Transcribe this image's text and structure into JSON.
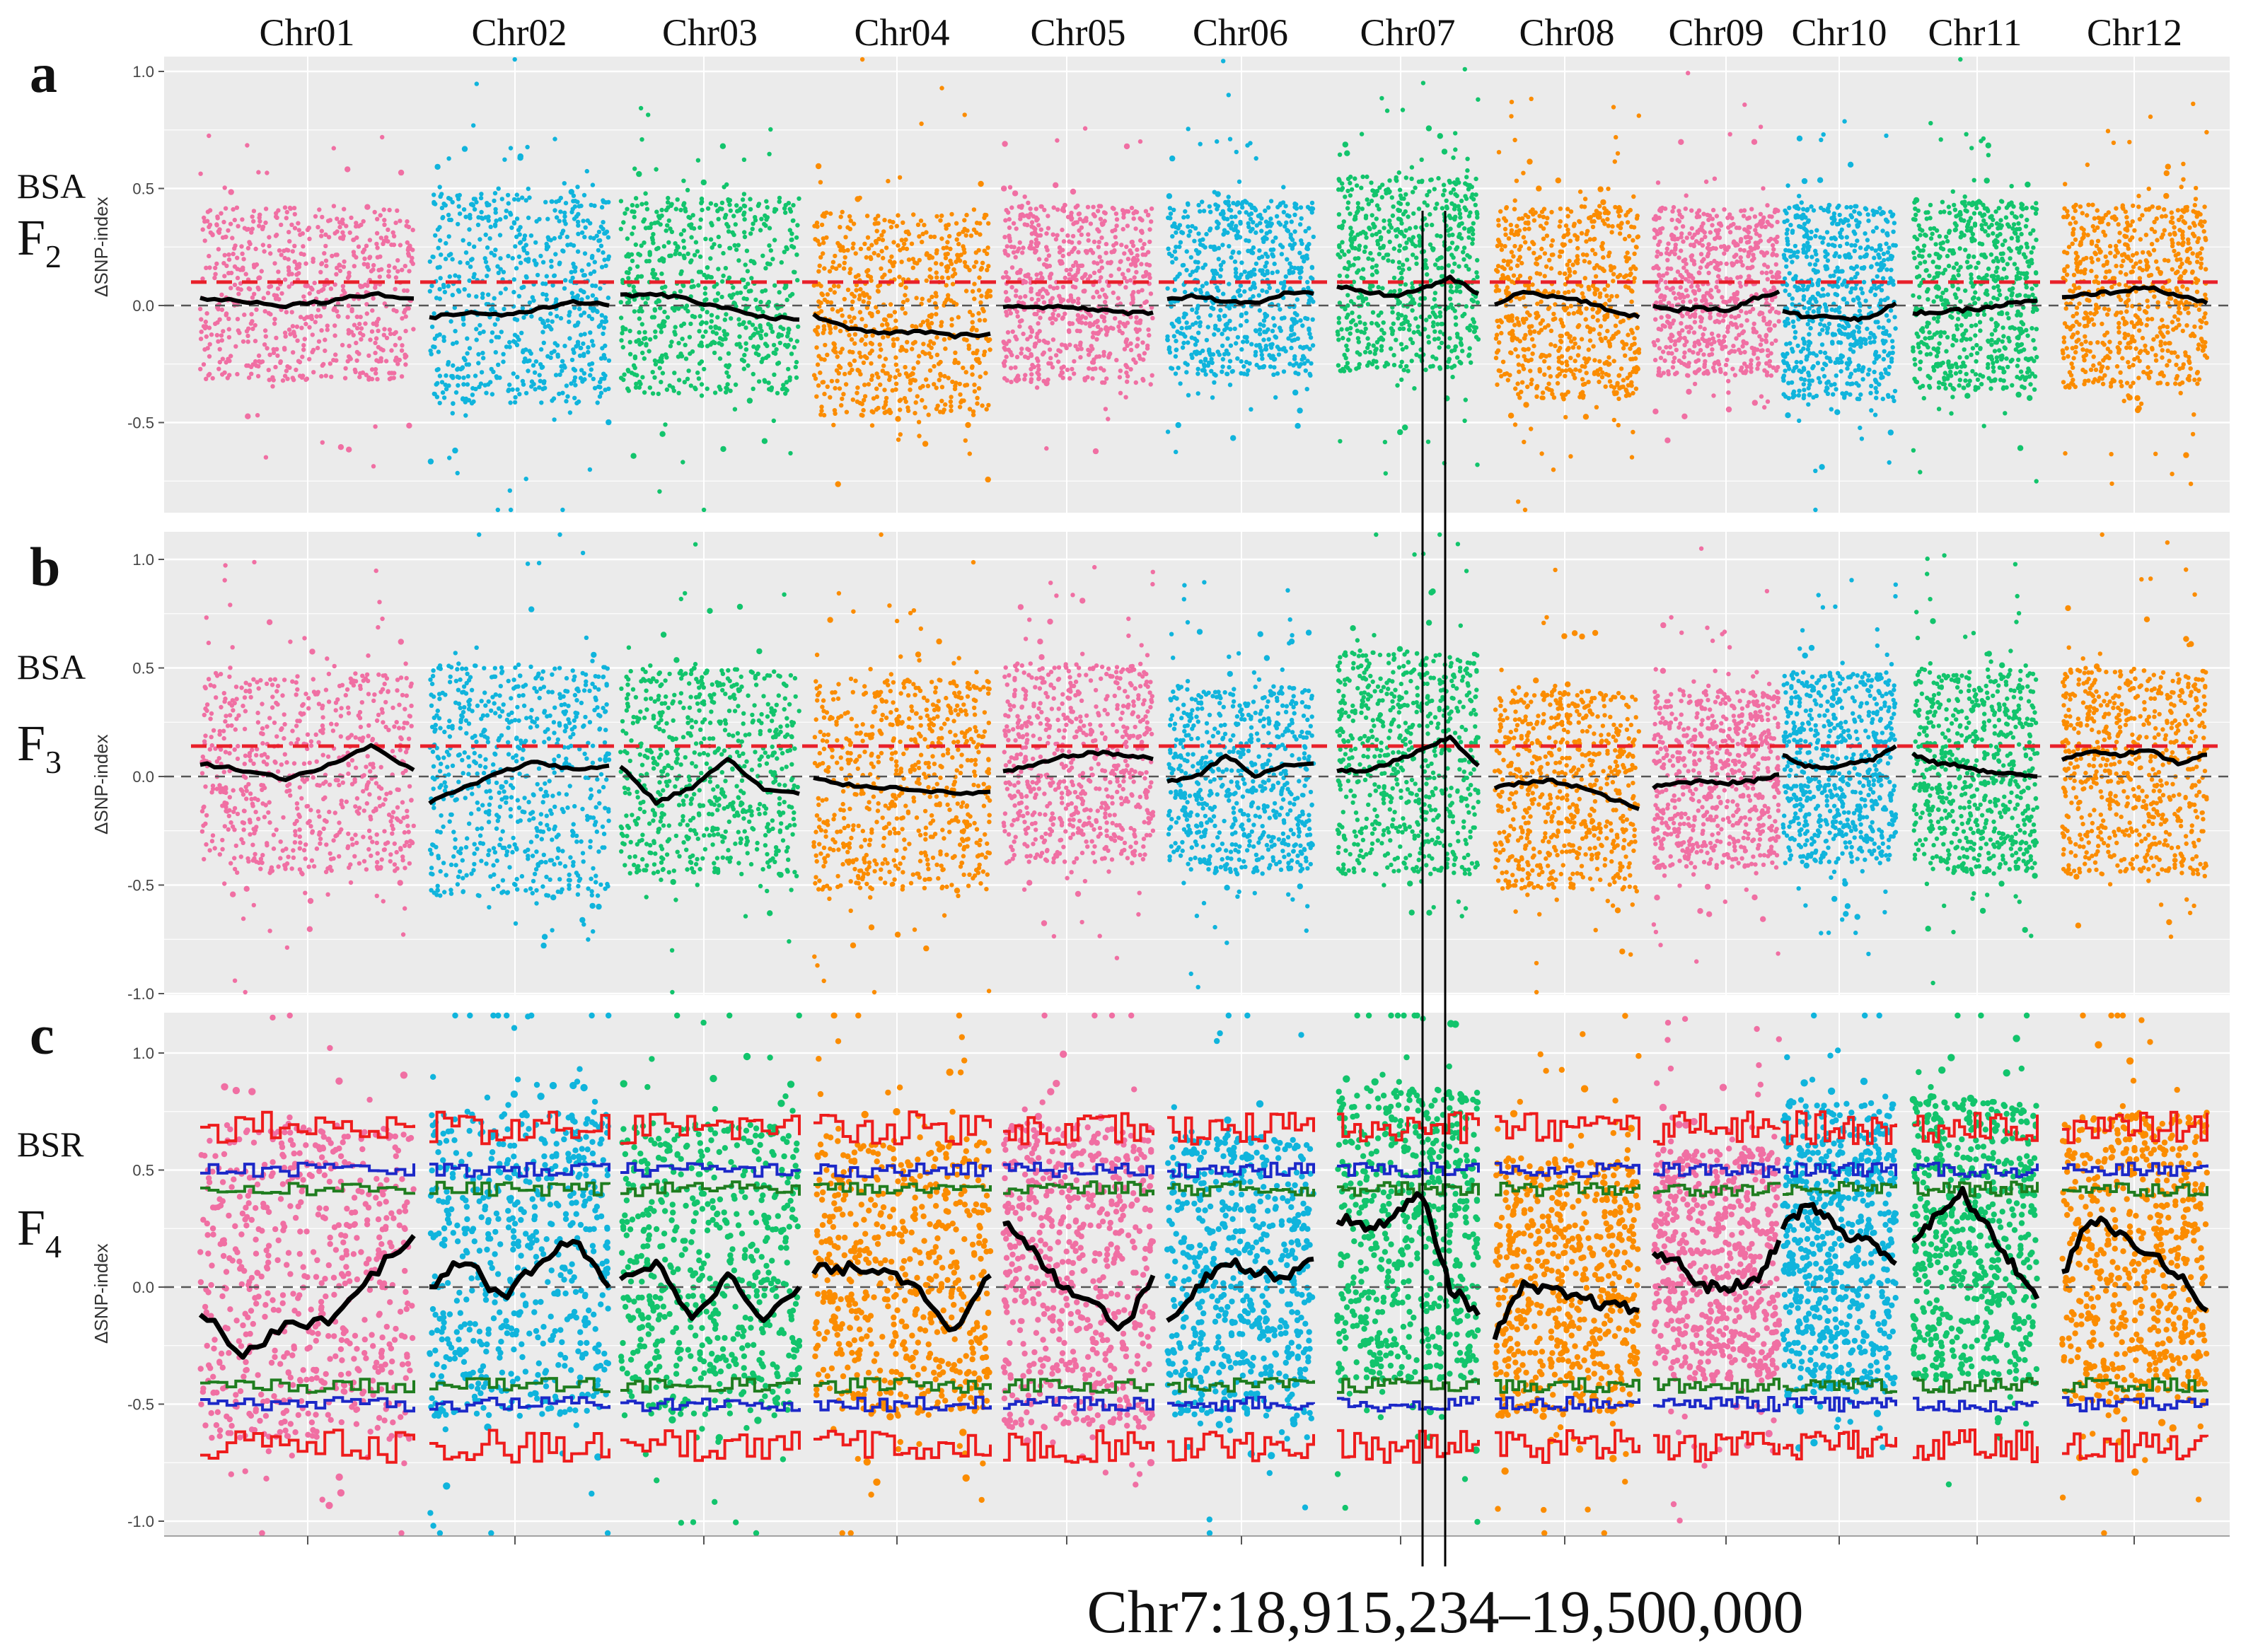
{
  "chart_data": {
    "type": "scatter",
    "chromosomes": [
      "Chr01",
      "Chr02",
      "Chr03",
      "Chr04",
      "Chr05",
      "Chr06",
      "Chr07",
      "Chr08",
      "Chr09",
      "Chr10",
      "Chr11",
      "Chr12"
    ],
    "chromosome_colors": [
      "#f06fa3",
      "#10b4dc",
      "#12c46c",
      "#fb8c00",
      "#f06fa3",
      "#10b4dc",
      "#12c46c",
      "#fb8c00",
      "#f06fa3",
      "#10b4dc",
      "#12c46c",
      "#fb8c00"
    ],
    "ylabel": "ΔSNP-index",
    "annotation": "Chr7:18,915,234–19,500,000",
    "panels": [
      {
        "letter": "a",
        "method": "BSA",
        "generation": "F",
        "subscript": "2",
        "ylim": [
          -0.85,
          1.05
        ],
        "yticks": [
          -0.5,
          0.0,
          0.5,
          1.0
        ],
        "threshold": 0.1,
        "point_band": [
          [
            -0.32,
            0.42
          ],
          [
            -0.42,
            0.48
          ],
          [
            -0.38,
            0.46
          ],
          [
            -0.47,
            0.4
          ],
          [
            -0.33,
            0.43
          ],
          [
            -0.3,
            0.45
          ],
          [
            -0.28,
            0.55
          ],
          [
            -0.4,
            0.43
          ],
          [
            -0.3,
            0.42
          ],
          [
            -0.4,
            0.43
          ],
          [
            -0.36,
            0.45
          ],
          [
            -0.35,
            0.43
          ]
        ],
        "smooth": [
          [
            0.03,
            0.02,
            0.0,
            0.02,
            0.05,
            0.03
          ],
          [
            -0.05,
            -0.03,
            -0.04,
            -0.02,
            0.02,
            0.0
          ],
          [
            0.04,
            0.05,
            0.02,
            -0.01,
            -0.05,
            -0.06
          ],
          [
            -0.04,
            -0.1,
            -0.12,
            -0.11,
            -0.13,
            -0.12
          ],
          [
            0.0,
            -0.01,
            0.0,
            -0.02,
            -0.03,
            -0.03
          ],
          [
            0.03,
            0.04,
            0.02,
            0.01,
            0.05,
            0.05
          ],
          [
            0.08,
            0.06,
            0.04,
            0.07,
            0.12,
            0.05
          ],
          [
            0.0,
            0.06,
            0.04,
            0.02,
            -0.02,
            -0.05
          ],
          [
            0.0,
            -0.02,
            -0.01,
            -0.02,
            0.03,
            0.06
          ],
          [
            -0.02,
            -0.05,
            -0.04,
            -0.06,
            -0.05,
            0.01
          ],
          [
            -0.03,
            -0.03,
            -0.02,
            -0.01,
            0.01,
            0.02
          ],
          [
            0.03,
            0.05,
            0.06,
            0.08,
            0.04,
            0.01
          ]
        ]
      },
      {
        "letter": "b",
        "method": "BSA",
        "generation": "F",
        "subscript": "3",
        "ylim": [
          -1.0,
          1.05
        ],
        "yticks": [
          -1.0,
          -0.5,
          0.0,
          0.5,
          1.0
        ],
        "threshold": 0.14,
        "point_band": [
          [
            -0.45,
            0.48
          ],
          [
            -0.55,
            0.52
          ],
          [
            -0.45,
            0.5
          ],
          [
            -0.52,
            0.45
          ],
          [
            -0.4,
            0.52
          ],
          [
            -0.45,
            0.42
          ],
          [
            -0.45,
            0.58
          ],
          [
            -0.52,
            0.4
          ],
          [
            -0.42,
            0.4
          ],
          [
            -0.4,
            0.48
          ],
          [
            -0.45,
            0.5
          ],
          [
            -0.45,
            0.5
          ]
        ],
        "smooth": [
          [
            0.06,
            0.03,
            -0.01,
            0.05,
            0.14,
            0.03
          ],
          [
            -0.12,
            -0.05,
            0.02,
            0.07,
            0.03,
            0.05
          ],
          [
            0.05,
            -0.12,
            -0.05,
            0.08,
            -0.06,
            -0.08
          ],
          [
            -0.01,
            -0.04,
            -0.05,
            -0.06,
            -0.08,
            -0.07
          ],
          [
            0.02,
            0.05,
            0.09,
            0.11,
            0.1,
            0.08
          ],
          [
            -0.02,
            0.0,
            0.1,
            0.0,
            0.05,
            0.06
          ],
          [
            0.03,
            0.02,
            0.07,
            0.12,
            0.18,
            0.05
          ],
          [
            -0.05,
            -0.03,
            -0.02,
            -0.05,
            -0.1,
            -0.15
          ],
          [
            -0.05,
            -0.03,
            -0.02,
            -0.03,
            -0.02,
            0.01
          ],
          [
            0.1,
            0.05,
            0.04,
            0.06,
            0.08,
            0.14
          ],
          [
            0.1,
            0.06,
            0.05,
            0.02,
            0.01,
            0.0
          ],
          [
            0.08,
            0.12,
            0.1,
            0.12,
            0.06,
            0.1
          ]
        ]
      },
      {
        "letter": "c",
        "method": "BSR",
        "generation": "F",
        "subscript": "4",
        "ylim": [
          -1.0,
          1.05
        ],
        "yticks": [
          -1.0,
          -0.5,
          0.0,
          0.5,
          1.0
        ],
        "threshold": null,
        "point_band": [
          [
            -0.65,
            0.7
          ],
          [
            -0.55,
            0.75
          ],
          [
            -0.55,
            0.7
          ],
          [
            -0.55,
            0.65
          ],
          [
            -0.6,
            0.7
          ],
          [
            -0.55,
            0.65
          ],
          [
            -0.4,
            0.85
          ],
          [
            -0.55,
            0.55
          ],
          [
            -0.4,
            0.6
          ],
          [
            -0.45,
            0.8
          ],
          [
            -0.4,
            0.8
          ],
          [
            -0.5,
            0.75
          ]
        ],
        "smooth": [
          [
            -0.1,
            -0.3,
            -0.15,
            -0.15,
            0.05,
            0.22
          ],
          [
            0.0,
            0.12,
            -0.05,
            0.1,
            0.2,
            0.0
          ],
          [
            0.05,
            0.1,
            -0.12,
            0.05,
            -0.15,
            0.0
          ],
          [
            0.07,
            0.08,
            0.08,
            0.0,
            -0.2,
            0.05
          ],
          [
            0.28,
            0.15,
            0.0,
            -0.05,
            -0.18,
            0.05
          ],
          [
            -0.15,
            0.0,
            0.12,
            0.06,
            0.05,
            0.12
          ],
          [
            0.3,
            0.25,
            0.3,
            0.4,
            0.0,
            -0.12
          ],
          [
            -0.2,
            0.0,
            -0.02,
            -0.05,
            -0.08,
            -0.1
          ],
          [
            0.15,
            0.1,
            0.0,
            0.0,
            0.02,
            0.2
          ],
          [
            0.25,
            0.35,
            0.3,
            0.2,
            0.2,
            0.1
          ],
          [
            0.2,
            0.3,
            0.4,
            0.25,
            0.1,
            -0.05
          ],
          [
            0.05,
            0.3,
            0.22,
            0.15,
            0.05,
            -0.1
          ]
        ],
        "ci_levels": {
          "red": 0.68,
          "blue": 0.5,
          "green": 0.42
        }
      }
    ]
  }
}
